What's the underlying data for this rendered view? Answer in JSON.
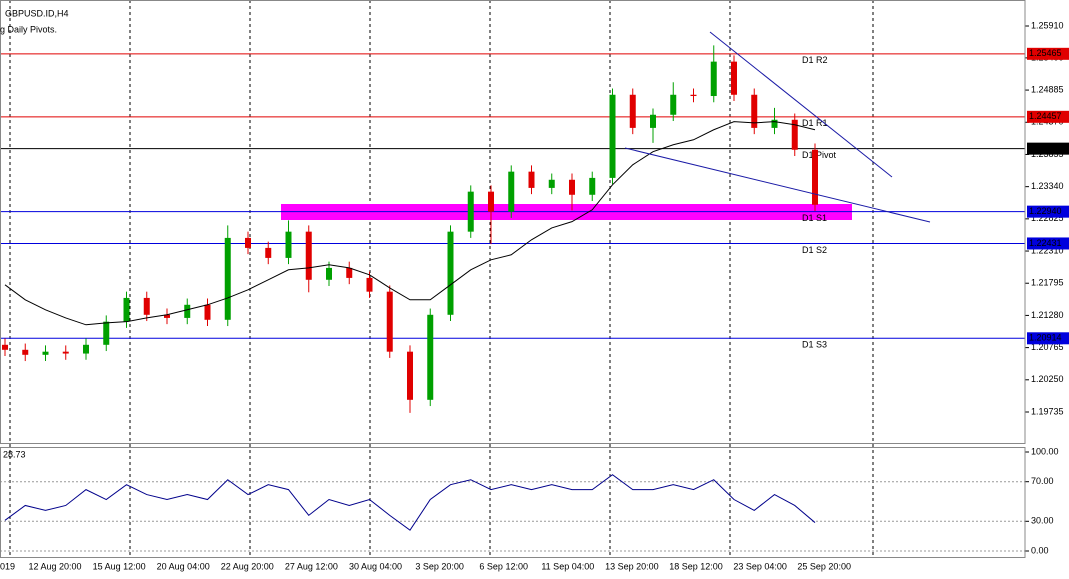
{
  "header": {
    "symbol": "GBPUSD.ID,H4",
    "indicator": "g Daily Pivots."
  },
  "chart_data": [
    {
      "type": "candlestick",
      "ylim": [
        1.19239,
        1.26326
      ],
      "yticks": [
        {
          "value": 1.2591,
          "label": "1.25910"
        },
        {
          "value": 1.254,
          "label": "1.25400"
        },
        1.24885,
        {
          "value": 1.2437,
          "label": "1.24370"
        },
        1.23855,
        {
          "value": 1.2334,
          "label": "1.23340"
        },
        1.22825,
        {
          "value": 1.2231,
          "label": "1.22310"
        },
        1.21795,
        {
          "value": 1.2128,
          "label": "1.21280"
        },
        1.20765,
        {
          "value": 1.2025,
          "label": "1.20250"
        },
        1.19735
      ],
      "x_labels": [
        "019",
        "12 Aug 20:00",
        "15 Aug 12:00",
        "20 Aug 04:00",
        "22 Aug 20:00",
        "27 Aug 12:00",
        "30 Aug 04:00",
        "3 Sep 20:00",
        "6 Sep 12:00",
        "11 Sep 04:00",
        "13 Sep 20:00",
        "18 Sep 12:00",
        "23 Sep 04:00",
        "25 Sep 20:00"
      ],
      "bull_color": "#00a000",
      "bear_color": "#e00000",
      "ohlc": [
        [
          1.2081,
          1.2091,
          1.2063,
          1.2073
        ],
        [
          1.2073,
          1.2083,
          1.2055,
          1.2065
        ],
        [
          1.2065,
          1.208,
          1.2055,
          1.207
        ],
        [
          1.207,
          1.208,
          1.2057,
          1.2067
        ],
        [
          1.2067,
          1.2091,
          1.2057,
          1.2081
        ],
        [
          1.2081,
          1.2128,
          1.2071,
          1.2118
        ],
        [
          1.2118,
          1.2166,
          1.2108,
          1.2156
        ],
        [
          1.2156,
          1.2166,
          1.2119,
          1.2129
        ],
        [
          1.2129,
          1.2139,
          1.2114,
          1.2124
        ],
        [
          1.2124,
          1.2155,
          1.2114,
          1.2145
        ],
        [
          1.2145,
          1.2155,
          1.2111,
          1.2121
        ],
        [
          1.2121,
          1.2272,
          1.2111,
          1.2252
        ],
        [
          1.2252,
          1.2262,
          1.2226,
          1.2236
        ],
        [
          1.2236,
          1.2246,
          1.221,
          1.222
        ],
        [
          1.222,
          1.228,
          1.221,
          1.2262
        ],
        [
          1.2262,
          1.2272,
          1.2165,
          1.2185
        ],
        [
          1.2185,
          1.2214,
          1.2175,
          1.2204
        ],
        [
          1.2204,
          1.2214,
          1.2178,
          1.2188
        ],
        [
          1.2188,
          1.2198,
          1.2156,
          1.2166
        ],
        [
          1.2166,
          1.2176,
          1.206,
          1.207
        ],
        [
          1.207,
          1.208,
          1.1972,
          1.1993
        ],
        [
          1.1993,
          1.2139,
          1.1983,
          1.2129
        ],
        [
          1.2129,
          1.2272,
          1.2119,
          1.2262
        ],
        [
          1.2262,
          1.2336,
          1.2252,
          1.2326
        ],
        [
          1.2326,
          1.2336,
          1.2242,
          1.2294
        ],
        [
          1.2294,
          1.2368,
          1.2284,
          1.2358
        ],
        [
          1.2358,
          1.2368,
          1.2322,
          1.2332
        ],
        [
          1.2332,
          1.2355,
          1.2322,
          1.2345
        ],
        [
          1.2345,
          1.2355,
          1.2296,
          1.2321
        ],
        [
          1.2321,
          1.2358,
          1.2311,
          1.2348
        ],
        [
          1.2348,
          1.2491,
          1.2338,
          1.2481
        ],
        [
          1.2481,
          1.2491,
          1.2418,
          1.2428
        ],
        [
          1.2428,
          1.2459,
          1.2404,
          1.2449
        ],
        [
          1.2449,
          1.2501,
          1.2439,
          1.2481
        ],
        [
          1.2481,
          1.2491,
          1.2469,
          1.2479
        ],
        [
          1.2479,
          1.256,
          1.2469,
          1.2534
        ],
        [
          1.2534,
          1.2544,
          1.2471,
          1.2481
        ],
        [
          1.2481,
          1.2491,
          1.2418,
          1.2428
        ],
        [
          1.2428,
          1.246,
          1.2418,
          1.2441
        ],
        [
          1.2441,
          1.2451,
          1.2383,
          1.2393
        ],
        [
          1.2393,
          1.2403,
          1.2295,
          1.2305
        ]
      ],
      "ma_color": "#000000",
      "ma": [
        1.2177,
        1.2153,
        1.2137,
        1.2124,
        1.2113,
        1.2116,
        1.2118,
        1.2124,
        1.2129,
        1.2137,
        1.2145,
        1.2156,
        1.2169,
        1.2185,
        1.2201,
        1.2204,
        1.2209,
        1.2204,
        1.2193,
        1.2172,
        1.2153,
        1.2153,
        1.2177,
        1.2201,
        1.2217,
        1.2225,
        1.2249,
        1.2268,
        1.2278,
        1.2297,
        1.2337,
        1.2369,
        1.239,
        1.2401,
        1.2409,
        1.2425,
        1.2438,
        1.2436,
        1.2438,
        1.2433,
        1.2425
      ],
      "pivots": [
        {
          "name": "D1 R2",
          "value": 1.25465,
          "color": "#e00000"
        },
        {
          "name": "D1 R1",
          "value": 1.24457,
          "color": "#e00000"
        },
        {
          "name": "D1 Pivot",
          "value": 1.23948,
          "color": "#000000"
        },
        {
          "name": "D1 S1",
          "value": 1.2294,
          "value_label": "1.22940",
          "color": "#0000dd"
        },
        {
          "name": "D1 S2",
          "value": 1.22431,
          "color": "#0000dd"
        },
        {
          "name": "D1 S3",
          "value": 1.20914,
          "color": "#0000dd"
        }
      ]
    },
    {
      "type": "line",
      "ylim": [
        -7.07,
        105.05
      ],
      "yticks": [
        {
          "value": 100,
          "label": "100.00"
        },
        {
          "value": 70,
          "label": "70.00"
        },
        {
          "value": 30,
          "label": "30.00"
        },
        {
          "value": 0,
          "label": "0.00"
        }
      ],
      "color": "#00008b",
      "values": [
        31,
        46,
        41,
        46,
        62,
        52,
        67,
        57,
        52,
        57,
        52,
        72,
        57,
        67,
        62,
        36,
        52,
        46,
        52,
        36,
        21,
        52,
        67,
        72,
        62,
        67,
        62,
        67,
        62,
        62,
        77,
        62,
        62,
        67,
        62,
        72,
        52,
        41,
        57,
        46,
        28.73
      ]
    }
  ]
}
